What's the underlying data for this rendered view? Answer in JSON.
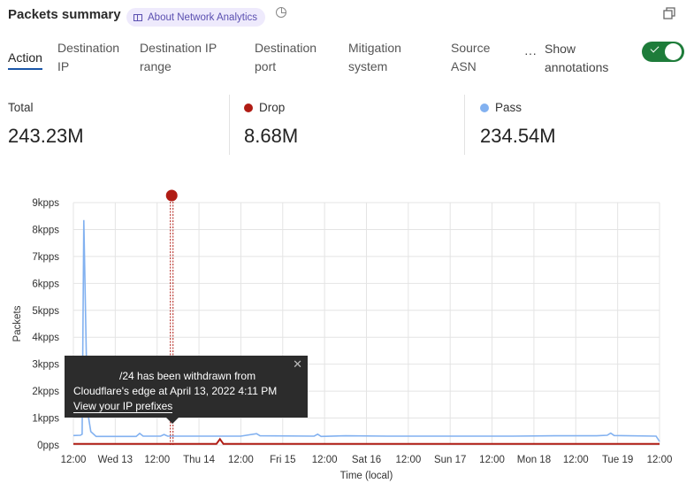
{
  "header": {
    "title": "Packets summary",
    "about_label": "About Network Analytics"
  },
  "tabs": [
    {
      "label": "Action",
      "active": true
    },
    {
      "label": "Destination IP"
    },
    {
      "label": "Destination IP range"
    },
    {
      "label": "Destination port"
    },
    {
      "label": "Mitigation system"
    },
    {
      "label": "Source ASN"
    }
  ],
  "more_label": "···",
  "annotations_toggle": {
    "label": "Show annotations",
    "on": true,
    "color": "#1e7c3a"
  },
  "stats": [
    {
      "label": "Total",
      "value": "243.23M"
    },
    {
      "label": "Drop",
      "value": "8.68M",
      "color": "#b01c14"
    },
    {
      "label": "Pass",
      "value": "234.54M",
      "color": "#82b1f0"
    }
  ],
  "tooltip": {
    "line1": "/24 has been withdrawn from",
    "line2": "Cloudflare's edge at April 13, 2022 4:11 PM",
    "link": "View your IP prefixes"
  },
  "chart_data": {
    "type": "line",
    "xlabel": "Time (local)",
    "ylabel": "Packets",
    "xlim": [
      "2022-04-12 12:00",
      "2022-04-19 12:00"
    ],
    "ylim": [
      0,
      9000
    ],
    "yticks": [
      "0pps",
      "1kpps",
      "2kpps",
      "3kpps",
      "4kpps",
      "5kpps",
      "6kpps",
      "7kpps",
      "8kpps",
      "9kpps"
    ],
    "xticks": [
      "12:00",
      "Wed 13",
      "12:00",
      "Thu 14",
      "12:00",
      "Fri 15",
      "12:00",
      "Sat 16",
      "12:00",
      "Sun 17",
      "12:00",
      "Mon 18",
      "12:00",
      "Tue 19",
      "12:00"
    ],
    "grid": true,
    "annotation": {
      "time": "2022-04-13 16:11",
      "color": "#b01c14"
    },
    "series": [
      {
        "name": "Pass",
        "color": "#82b1f0",
        "points": [
          [
            "2022-04-12 12:00",
            350
          ],
          [
            "2022-04-12 14:00",
            360
          ],
          [
            "2022-04-12 14:30",
            400
          ],
          [
            "2022-04-12 15:00",
            8350
          ],
          [
            "2022-04-12 16:00",
            1300
          ],
          [
            "2022-04-12 17:00",
            500
          ],
          [
            "2022-04-12 18:30",
            320
          ],
          [
            "2022-04-13 06:00",
            320
          ],
          [
            "2022-04-13 07:00",
            430
          ],
          [
            "2022-04-13 08:00",
            330
          ],
          [
            "2022-04-13 13:00",
            330
          ],
          [
            "2022-04-13 14:00",
            390
          ],
          [
            "2022-04-13 15:00",
            330
          ],
          [
            "2022-04-14 12:00",
            330
          ],
          [
            "2022-04-14 16:30",
            420
          ],
          [
            "2022-04-14 17:30",
            340
          ],
          [
            "2022-04-15 09:00",
            330
          ],
          [
            "2022-04-15 10:00",
            400
          ],
          [
            "2022-04-15 11:00",
            320
          ],
          [
            "2022-04-15 18:00",
            340
          ],
          [
            "2022-04-16 06:00",
            330
          ],
          [
            "2022-04-16 18:00",
            330
          ],
          [
            "2022-04-17 06:00",
            330
          ],
          [
            "2022-04-17 18:00",
            330
          ],
          [
            "2022-04-18 06:00",
            340
          ],
          [
            "2022-04-18 18:00",
            340
          ],
          [
            "2022-04-18 21:00",
            360
          ],
          [
            "2022-04-18 22:00",
            440
          ],
          [
            "2022-04-18 23:00",
            350
          ],
          [
            "2022-04-19 11:00",
            330
          ],
          [
            "2022-04-19 12:00",
            130
          ]
        ]
      },
      {
        "name": "Drop",
        "color": "#b01c14",
        "points": [
          [
            "2022-04-12 12:00",
            40
          ],
          [
            "2022-04-14 05:00",
            40
          ],
          [
            "2022-04-14 06:00",
            220
          ],
          [
            "2022-04-14 07:00",
            40
          ],
          [
            "2022-04-19 12:00",
            40
          ]
        ]
      }
    ]
  }
}
